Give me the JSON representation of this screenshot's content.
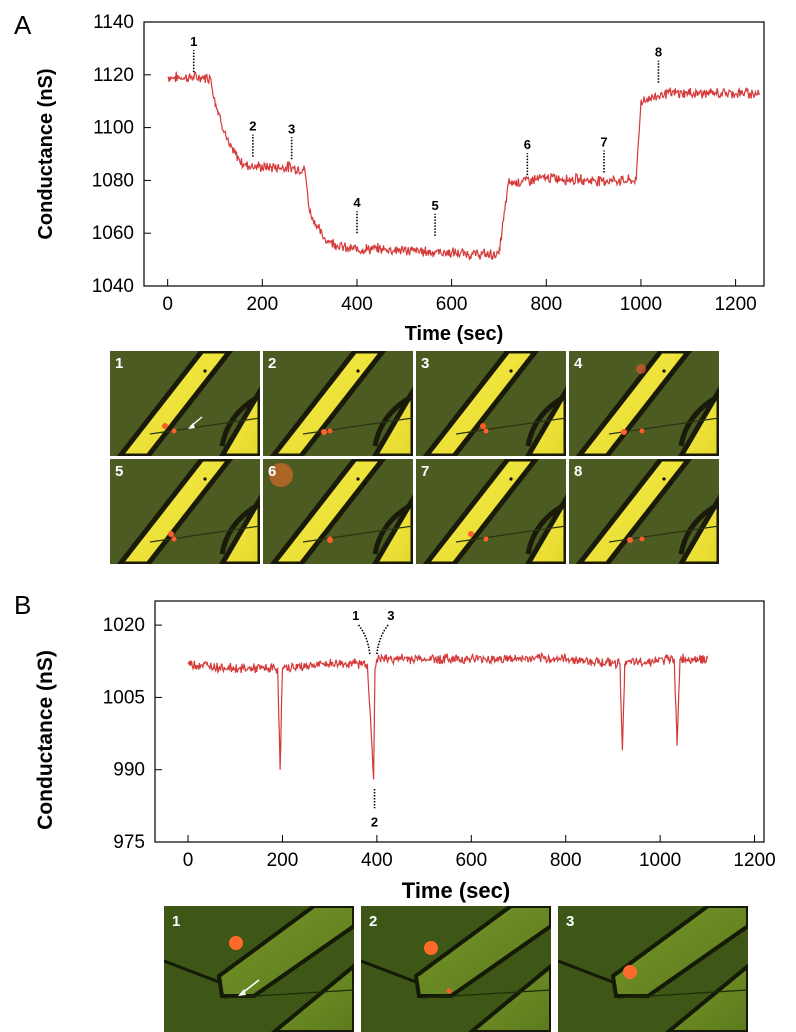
{
  "chart_data": [
    {
      "panel_letter": "A",
      "type": "line",
      "xlabel": "Time (sec)",
      "ylabel": "Conductance (nS)",
      "xlim": [
        -50,
        1260
      ],
      "ylim": [
        1040,
        1140
      ],
      "xticks": [
        0,
        200,
        400,
        600,
        800,
        1000,
        1200
      ],
      "yticks": [
        1040,
        1060,
        1080,
        1100,
        1120,
        1140
      ],
      "line_color": "#d43a3a",
      "grid": false,
      "series": [
        {
          "x": [
            0,
            50,
            90,
            100,
            130,
            160,
            200,
            260,
            290,
            300,
            330,
            380,
            450,
            550,
            650,
            700,
            720,
            800,
            900,
            990,
            1000,
            1050,
            1150,
            1250
          ],
          "y": [
            1119,
            1119,
            1119,
            1110,
            1093,
            1086,
            1085,
            1085,
            1084,
            1068,
            1058,
            1054,
            1054,
            1053,
            1052,
            1052,
            1079,
            1081,
            1080,
            1080,
            1110,
            1113,
            1113,
            1113
          ]
        }
      ],
      "markers": [
        {
          "label": "1",
          "x": 55,
          "y": 1121
        },
        {
          "label": "2",
          "x": 180,
          "y": 1089
        },
        {
          "label": "3",
          "x": 262,
          "y": 1088
        },
        {
          "label": "4",
          "x": 400,
          "y": 1060
        },
        {
          "label": "5",
          "x": 565,
          "y": 1059
        },
        {
          "label": "6",
          "x": 760,
          "y": 1082
        },
        {
          "label": "7",
          "x": 922,
          "y": 1083
        },
        {
          "label": "8",
          "x": 1037,
          "y": 1117
        }
      ],
      "thumbnails": [
        "1",
        "2",
        "3",
        "4",
        "5",
        "6",
        "7",
        "8"
      ]
    },
    {
      "panel_letter": "B",
      "type": "line",
      "xlabel": "Time (sec)",
      "ylabel": "Conductance (nS)",
      "xlim": [
        -70,
        1220
      ],
      "ylim": [
        975,
        1025
      ],
      "xticks": [
        0,
        200,
        400,
        600,
        800,
        1000,
        1200
      ],
      "yticks": [
        975,
        990,
        1005,
        1020
      ],
      "line_color": "#d43a3a",
      "grid": false,
      "series": [
        {
          "x": [
            0,
            100,
            190,
            195,
            200,
            300,
            380,
            393,
            396,
            400,
            500,
            600,
            700,
            800,
            915,
            920,
            925,
            1030,
            1036,
            1042,
            1100
          ],
          "y": [
            1012,
            1011,
            1011,
            990,
            1011,
            1012,
            1012,
            988,
            1011,
            1013,
            1013,
            1013,
            1013,
            1013,
            1012,
            994,
            1012,
            1013,
            995,
            1013,
            1013
          ]
        }
      ],
      "markers": [
        {
          "label": "1",
          "x": 385,
          "y": 1014
        },
        {
          "label": "2",
          "x": 395,
          "y": 985
        },
        {
          "label": "3",
          "x": 400,
          "y": 1014
        }
      ],
      "thumbnails": [
        "1",
        "2",
        "3"
      ]
    }
  ]
}
